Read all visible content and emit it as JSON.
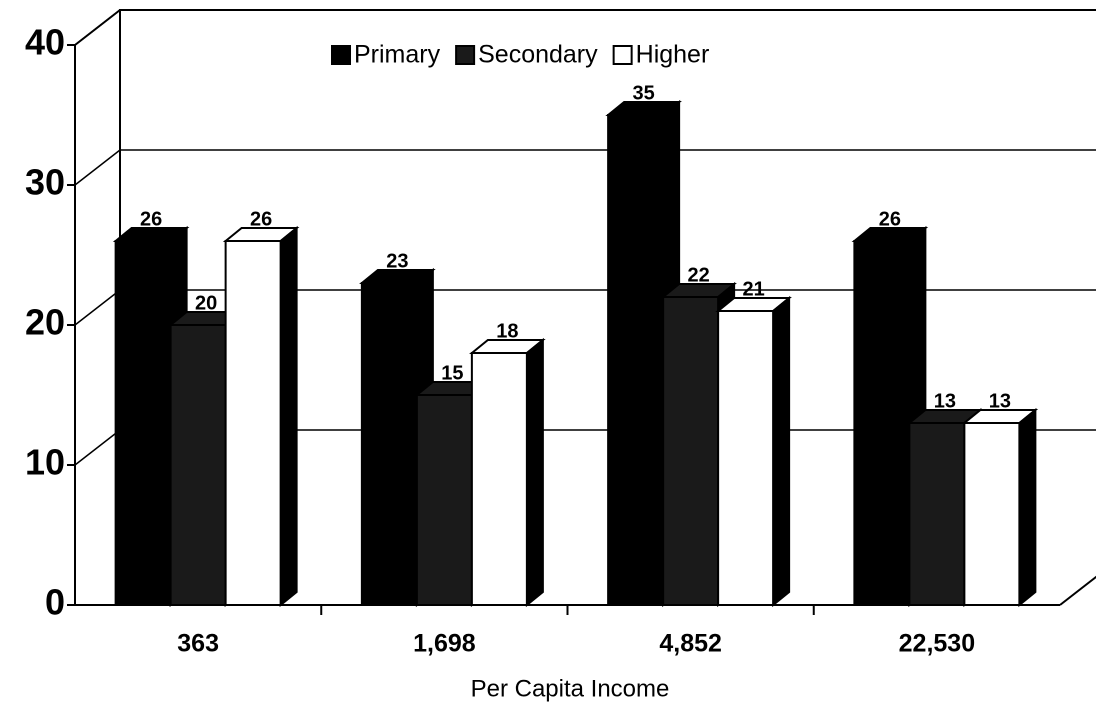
{
  "chart_data": {
    "type": "bar",
    "xlabel": "Per Capita Income",
    "categories": [
      "363",
      "1,698",
      "4,852",
      "22,530"
    ],
    "series": [
      {
        "name": "Primary",
        "color": "#000000",
        "values": [
          26,
          23,
          35,
          26
        ]
      },
      {
        "name": "Secondary",
        "color": "#1a1a1a",
        "values": [
          20,
          15,
          22,
          13
        ]
      },
      {
        "name": "Higher",
        "color": "#ffffff",
        "values": [
          26,
          18,
          21,
          13
        ]
      }
    ],
    "ylim": [
      0,
      40
    ],
    "yticks": [
      0,
      10,
      20,
      30,
      40
    ],
    "grid": true,
    "legend": "top"
  }
}
